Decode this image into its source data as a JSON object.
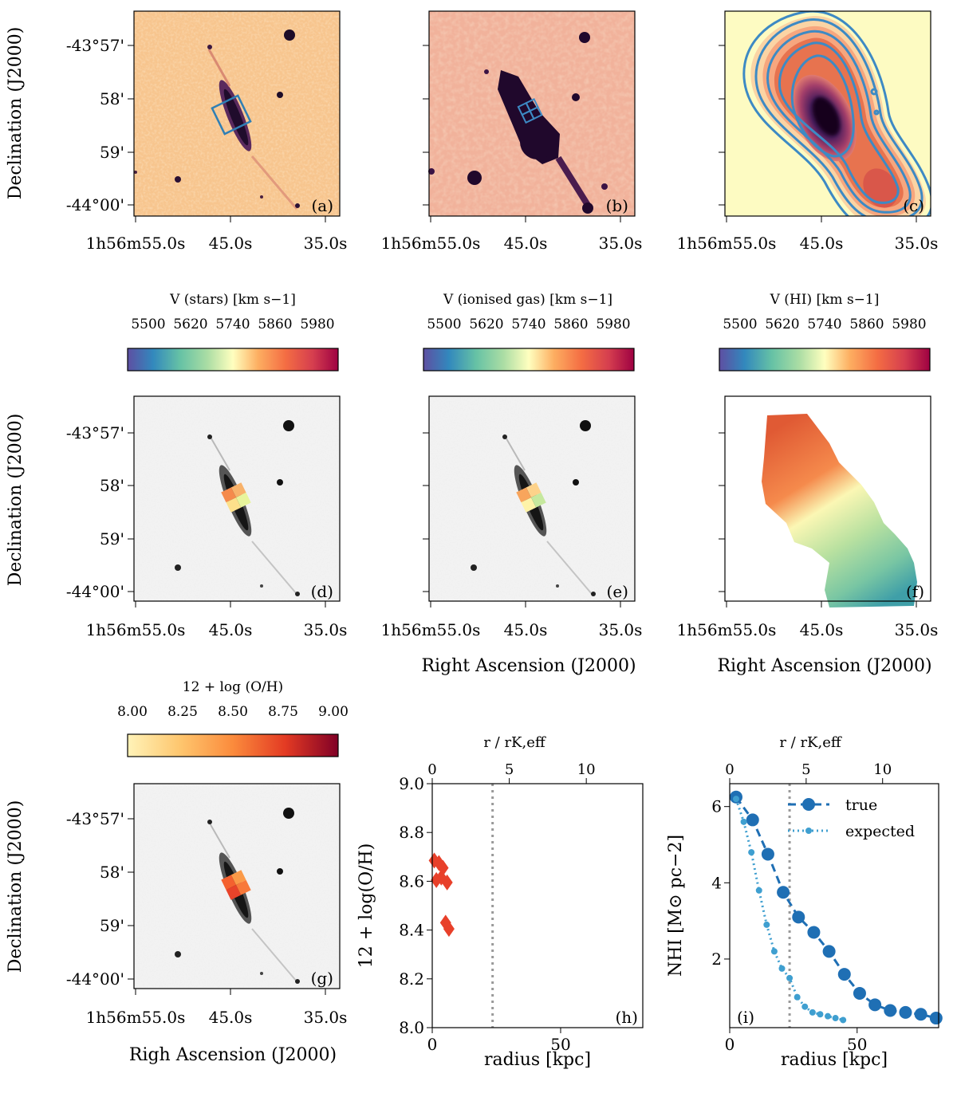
{
  "axes": {
    "dec_label": "Declination (J2000)",
    "ra_label": "Right Ascension (J2000)",
    "ra_label_typo": "Righ Ascension (J2000)",
    "dec_ticks": [
      "-43°57'",
      "58'",
      "59'",
      "-44°00'"
    ],
    "ra_ticks": [
      "1h56m55.0s",
      "45.0s",
      "35.0s"
    ]
  },
  "panels": {
    "a": {
      "tag": "(a)"
    },
    "b": {
      "tag": "(b)"
    },
    "c": {
      "tag": "(c)"
    },
    "d": {
      "tag": "(d)"
    },
    "e": {
      "tag": "(e)"
    },
    "f": {
      "tag": "(f)"
    },
    "g": {
      "tag": "(g)"
    },
    "h": {
      "tag": "(h)"
    },
    "i": {
      "tag": "(i)"
    }
  },
  "colorbars": [
    {
      "label": "V (stars) [km s−1]",
      "ticks": [
        "5500",
        "5620",
        "5740",
        "5860",
        "5980"
      ],
      "cmap": "spectral"
    },
    {
      "label": "V (ionised gas) [km s−1]",
      "ticks": [
        "5500",
        "5620",
        "5740",
        "5860",
        "5980"
      ],
      "cmap": "spectral"
    },
    {
      "label": "V (HI) [km s−1]",
      "ticks": [
        "5500",
        "5620",
        "5740",
        "5860",
        "5980"
      ],
      "cmap": "spectral"
    },
    {
      "label": "12 + log (O/H)",
      "ticks": [
        "8.00",
        "8.25",
        "8.50",
        "8.75",
        "9.00"
      ],
      "cmap": "orange-red"
    }
  ],
  "colors": {
    "accent_blue": "#1f6fb4",
    "light_blue": "#3f9fd0",
    "contour_blue": "#3d8ac4",
    "marker_red": "#e8402a",
    "dotted_gray": "#999999"
  },
  "chart_data": [
    {
      "type": "scatter",
      "panel": "(h)",
      "xlabel": "radius [kpc]",
      "ylabel": "12 + log(O/H)",
      "xlim": [
        0,
        82
      ],
      "ylim": [
        8.0,
        9.0
      ],
      "x_ticks": [
        "0",
        "50"
      ],
      "y_ticks": [
        "8.0",
        "8.2",
        "8.4",
        "8.6",
        "8.8",
        "9.0"
      ],
      "top_axis_label": "r / rK,eff",
      "top_ticks": [
        {
          "value": 0,
          "label": "0"
        },
        {
          "value": 5,
          "label": "5"
        },
        {
          "value": 10,
          "label": "10"
        }
      ],
      "r_eff_kpc": 6.0,
      "vline_kpc": 23.5,
      "marker": "diamond",
      "x": [
        0.8,
        2.6,
        4.2,
        1.6,
        3.5,
        5.8,
        5.2,
        6.5
      ],
      "y": [
        8.685,
        8.675,
        8.655,
        8.605,
        8.615,
        8.595,
        8.43,
        8.405
      ]
    },
    {
      "type": "line",
      "panel": "(i)",
      "xlabel": "radius [kpc]",
      "ylabel": "NHI [M⊙ pc−2]",
      "xlim": [
        0,
        82
      ],
      "ylim": [
        0.2,
        6.6
      ],
      "x_ticks": [
        "0",
        "50"
      ],
      "y_ticks": [
        "2",
        "4",
        "6"
      ],
      "top_axis_label": "r / rK,eff",
      "top_ticks": [
        {
          "value": 0,
          "label": "0"
        },
        {
          "value": 5,
          "label": "5"
        },
        {
          "value": 10,
          "label": "10"
        }
      ],
      "r_eff_kpc": 6.0,
      "vline_kpc": 23.5,
      "legend_position": "top-right",
      "series": [
        {
          "name": "true",
          "style": "dashed",
          "marker": "large-circle",
          "x": [
            2.5,
            9,
            15,
            21,
            27,
            33,
            39,
            45,
            51,
            57,
            63,
            69,
            75,
            81
          ],
          "y": [
            6.25,
            5.65,
            4.75,
            3.75,
            3.1,
            2.7,
            2.2,
            1.6,
            1.1,
            0.8,
            0.65,
            0.6,
            0.55,
            0.45
          ]
        },
        {
          "name": "expected",
          "style": "dotted",
          "marker": "small-circle",
          "x": [
            2.5,
            5.5,
            8.5,
            11.5,
            14.5,
            17.5,
            20.5,
            23.5,
            26.5,
            29.5,
            32.5,
            35.5,
            38.5,
            41.5,
            44.5
          ],
          "y": [
            6.2,
            5.6,
            4.8,
            3.8,
            2.9,
            2.2,
            1.75,
            1.5,
            1.0,
            0.75,
            0.6,
            0.55,
            0.5,
            0.45,
            0.4
          ]
        }
      ]
    }
  ]
}
